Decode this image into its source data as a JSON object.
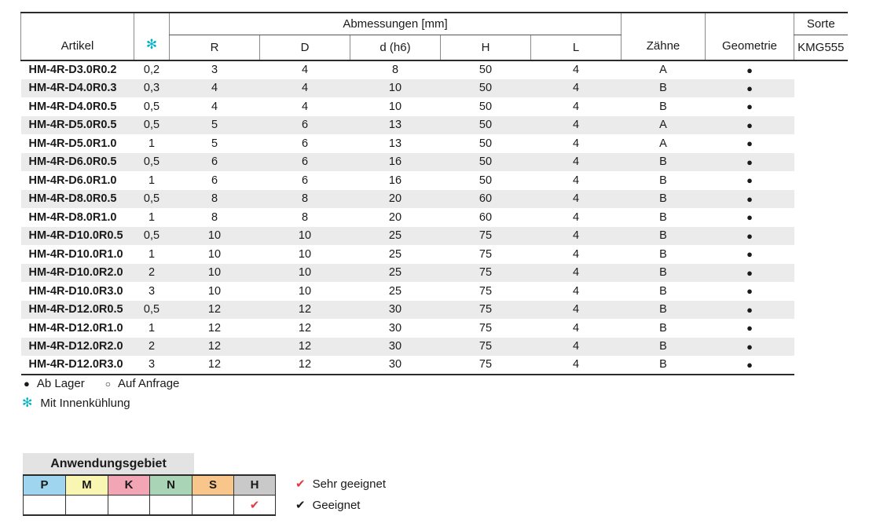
{
  "colors": {
    "accent_cyan": "#00b2c4",
    "red_check": "#e23b44",
    "black_check": "#1a1a1a",
    "row_stripe": "#ebebeb",
    "app_title_bg": "#e3e3e3"
  },
  "main_table": {
    "header": {
      "artikel": "Artikel",
      "coolant_symbol": "✻",
      "dimensions_group": "Abmessungen [mm]",
      "dimension_cols": [
        "R",
        "D",
        "d (h6)",
        "H",
        "L"
      ],
      "zaehne": "Zähne",
      "geometrie": "Geometrie",
      "sorte": "Sorte",
      "sorte_grade": "KMG555"
    },
    "rows": [
      [
        "HM-4R-D3.0R0.2",
        "0,2",
        "3",
        "4",
        "8",
        "50",
        "4",
        "A",
        "●"
      ],
      [
        "HM-4R-D4.0R0.3",
        "0,3",
        "4",
        "4",
        "10",
        "50",
        "4",
        "B",
        "●"
      ],
      [
        "HM-4R-D4.0R0.5",
        "0,5",
        "4",
        "4",
        "10",
        "50",
        "4",
        "B",
        "●"
      ],
      [
        "HM-4R-D5.0R0.5",
        "0,5",
        "5",
        "6",
        "13",
        "50",
        "4",
        "A",
        "●"
      ],
      [
        "HM-4R-D5.0R1.0",
        "1",
        "5",
        "6",
        "13",
        "50",
        "4",
        "A",
        "●"
      ],
      [
        "HM-4R-D6.0R0.5",
        "0,5",
        "6",
        "6",
        "16",
        "50",
        "4",
        "B",
        "●"
      ],
      [
        "HM-4R-D6.0R1.0",
        "1",
        "6",
        "6",
        "16",
        "50",
        "4",
        "B",
        "●"
      ],
      [
        "HM-4R-D8.0R0.5",
        "0,5",
        "8",
        "8",
        "20",
        "60",
        "4",
        "B",
        "●"
      ],
      [
        "HM-4R-D8.0R1.0",
        "1",
        "8",
        "8",
        "20",
        "60",
        "4",
        "B",
        "●"
      ],
      [
        "HM-4R-D10.0R0.5",
        "0,5",
        "10",
        "10",
        "25",
        "75",
        "4",
        "B",
        "●"
      ],
      [
        "HM-4R-D10.0R1.0",
        "1",
        "10",
        "10",
        "25",
        "75",
        "4",
        "B",
        "●"
      ],
      [
        "HM-4R-D10.0R2.0",
        "2",
        "10",
        "10",
        "25",
        "75",
        "4",
        "B",
        "●"
      ],
      [
        "HM-4R-D10.0R3.0",
        "3",
        "10",
        "10",
        "25",
        "75",
        "4",
        "B",
        "●"
      ],
      [
        "HM-4R-D12.0R0.5",
        "0,5",
        "12",
        "12",
        "30",
        "75",
        "4",
        "B",
        "●"
      ],
      [
        "HM-4R-D12.0R1.0",
        "1",
        "12",
        "12",
        "30",
        "75",
        "4",
        "B",
        "●"
      ],
      [
        "HM-4R-D12.0R2.0",
        "2",
        "12",
        "12",
        "30",
        "75",
        "4",
        "B",
        "●"
      ],
      [
        "HM-4R-D12.0R3.0",
        "3",
        "12",
        "12",
        "30",
        "75",
        "4",
        "B",
        "●"
      ]
    ]
  },
  "legend": {
    "stock_filled_symbol": "●",
    "stock_filled_label": "Ab Lager",
    "stock_open_symbol": "○",
    "stock_open_label": "Auf Anfrage",
    "coolant_symbol": "✻",
    "coolant_label": "Mit Innenkühlung"
  },
  "application": {
    "title": "Anwendungsgebiet",
    "columns": [
      {
        "label": "P",
        "color": "#9fd5ef",
        "checked": ""
      },
      {
        "label": "M",
        "color": "#f9f5b3",
        "checked": ""
      },
      {
        "label": "K",
        "color": "#f2a5b5",
        "checked": ""
      },
      {
        "label": "N",
        "color": "#a9d4b6",
        "checked": ""
      },
      {
        "label": "S",
        "color": "#f8c68b",
        "checked": ""
      },
      {
        "label": "H",
        "color": "#c9c9c9",
        "checked": "✔"
      }
    ],
    "legend": [
      {
        "symbol": "✔",
        "color": "#e23b44",
        "label": "Sehr geeignet"
      },
      {
        "symbol": "✔",
        "color": "#1a1a1a",
        "label": "Geeignet"
      }
    ]
  }
}
